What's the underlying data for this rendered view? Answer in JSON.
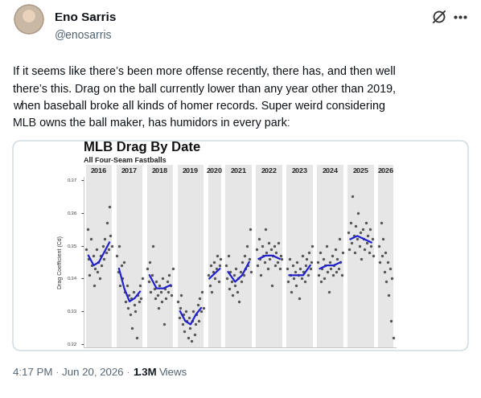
{
  "header": {
    "name": "Eno Sarris",
    "handle": "@enosarris"
  },
  "tweet": {
    "text_lines": [
      "If it seems like there’s been more offense recently, there has, and then well",
      "there’s this. Drag on the ball currently lower than any year other than 2019,",
      "when baseball broke all kinds of homer records. Super weird considering",
      "MLB owns the ball maker, has humidors in every park:"
    ]
  },
  "chart_data": {
    "type": "scatter",
    "title": "MLB Drag By Date",
    "subtitle": "All Four-Seam Fastballs",
    "y_label": "Drag Coefficient (Cd)",
    "categories": [
      "2016",
      "2017",
      "2018",
      "2019",
      "2020",
      "2021",
      "2022",
      "2023",
      "2024",
      "2025",
      "2026"
    ],
    "values": [
      [
        0.349,
        0.355,
        0.346,
        0.341,
        0.352,
        0.344,
        0.347,
        0.338,
        0.343,
        0.349,
        0.342,
        0.345,
        0.34,
        0.347,
        0.344,
        0.35,
        0.346,
        0.352,
        0.348,
        0.357,
        0.349,
        0.362,
        0.353,
        0.35
      ],
      [
        0.347,
        0.342,
        0.35,
        0.338,
        0.344,
        0.34,
        0.345,
        0.336,
        0.333,
        0.338,
        0.331,
        0.335,
        0.329,
        0.334,
        0.325,
        0.336,
        0.332,
        0.33,
        0.322,
        0.335,
        0.333,
        0.338,
        0.334,
        0.34
      ],
      [
        0.343,
        0.339,
        0.345,
        0.336,
        0.341,
        0.35,
        0.337,
        0.334,
        0.339,
        0.335,
        0.331,
        0.338,
        0.336,
        0.333,
        0.34,
        0.326,
        0.337,
        0.334,
        0.339,
        0.336,
        0.341,
        0.338,
        0.335,
        0.343
      ],
      [
        0.333,
        0.328,
        0.331,
        0.335,
        0.326,
        0.329,
        0.324,
        0.33,
        0.327,
        0.322,
        0.328,
        0.325,
        0.321,
        0.327,
        0.33,
        0.323,
        0.326,
        0.329,
        0.332,
        0.327,
        0.334,
        0.33,
        0.336,
        0.331
      ],
      [
        0.341,
        0.338,
        0.344,
        0.336,
        0.342,
        0.345,
        0.34,
        0.343,
        0.347,
        0.339,
        0.344,
        0.346
      ],
      [
        0.344,
        0.34,
        0.347,
        0.337,
        0.342,
        0.339,
        0.335,
        0.341,
        0.338,
        0.343,
        0.336,
        0.34,
        0.333,
        0.342,
        0.339,
        0.345,
        0.341,
        0.347,
        0.343,
        0.35,
        0.344,
        0.346,
        0.355,
        0.342
      ],
      [
        0.349,
        0.344,
        0.352,
        0.346,
        0.341,
        0.35,
        0.347,
        0.345,
        0.355,
        0.348,
        0.343,
        0.351,
        0.346,
        0.349,
        0.338,
        0.347,
        0.35,
        0.344,
        0.348,
        0.345,
        0.351,
        0.343,
        0.347,
        0.346
      ],
      [
        0.343,
        0.339,
        0.346,
        0.341,
        0.336,
        0.344,
        0.34,
        0.342,
        0.338,
        0.345,
        0.341,
        0.334,
        0.343,
        0.34,
        0.347,
        0.342,
        0.339,
        0.344,
        0.346,
        0.341,
        0.348,
        0.343,
        0.345,
        0.35
      ],
      [
        0.345,
        0.341,
        0.348,
        0.339,
        0.343,
        0.346,
        0.34,
        0.344,
        0.35,
        0.342,
        0.336,
        0.345,
        0.343,
        0.347,
        0.341,
        0.344,
        0.349,
        0.342,
        0.346,
        0.343,
        0.352,
        0.345,
        0.341,
        0.348
      ],
      [
        0.354,
        0.349,
        0.357,
        0.351,
        0.365,
        0.353,
        0.348,
        0.356,
        0.352,
        0.36,
        0.35,
        0.354,
        0.346,
        0.355,
        0.352,
        0.349,
        0.357,
        0.351,
        0.353,
        0.348,
        0.355,
        0.35,
        0.352,
        0.347
      ],
      [
        0.35,
        0.345,
        0.357,
        0.347,
        0.352,
        0.342,
        0.348,
        0.339,
        0.345,
        0.335,
        0.343,
        0.327,
        0.34,
        0.322
      ]
    ],
    "trend": [
      [
        0.347,
        0.344,
        0.345,
        0.348,
        0.351
      ],
      [
        0.343,
        0.337,
        0.333,
        0.334,
        0.336
      ],
      [
        0.341,
        0.337,
        0.337,
        0.338
      ],
      [
        0.33,
        0.327,
        0.326,
        0.329,
        0.331
      ],
      [
        0.34,
        0.343
      ],
      [
        0.342,
        0.339,
        0.341,
        0.345
      ],
      [
        0.346,
        0.347,
        0.347,
        0.346
      ],
      [
        0.341,
        0.341,
        0.341,
        0.344
      ],
      [
        0.343,
        0.344,
        0.344,
        0.345
      ],
      [
        0.352,
        0.353,
        0.352,
        0.351
      ],
      null
    ],
    "color": "#555555",
    "ylim": [
      0.319,
      0.371
    ],
    "yticks": [
      0.32,
      0.33,
      0.34,
      0.35,
      0.36,
      0.37
    ],
    "tick_labels": "y"
  },
  "footer": {
    "time": "4:17 PM · Jun 20, 2026 ·",
    "views": "1.3M",
    "views_label": "Views"
  }
}
